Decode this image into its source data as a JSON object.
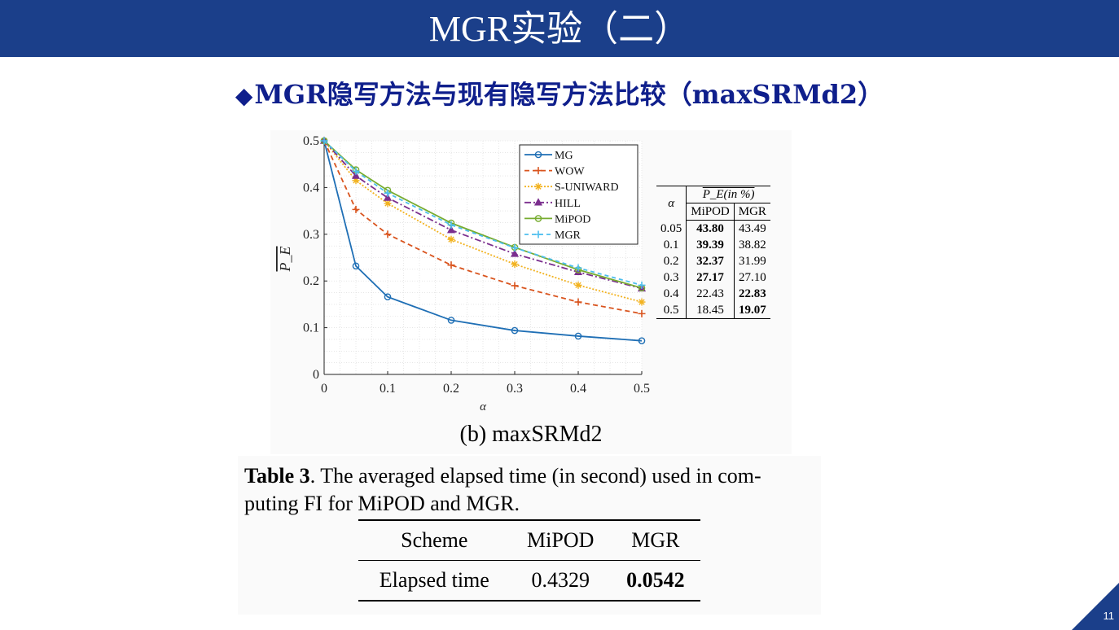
{
  "header": {
    "title": "MGR实验（二）"
  },
  "subtitle": {
    "diamond": "◆",
    "text": "MGR隐写方法与现有隐写方法比较（maxSRMd2）"
  },
  "chart_data": {
    "type": "line",
    "x": [
      0,
      0.05,
      0.1,
      0.2,
      0.3,
      0.4,
      0.5
    ],
    "xlabel": "α",
    "ylabel": "P_E",
    "xlim": [
      0,
      0.5
    ],
    "ylim": [
      0,
      0.5
    ],
    "xticks": [
      "0",
      "0.1",
      "0.2",
      "0.3",
      "0.4",
      "0.5"
    ],
    "yticks": [
      "0",
      "0.1",
      "0.2",
      "0.3",
      "0.4",
      "0.5"
    ],
    "grid": true,
    "legend": "top-right",
    "caption": "(b) maxSRMd2",
    "series": [
      {
        "name": "MG",
        "color": "#1f6fb5",
        "dash": "",
        "marker": "circle",
        "values": [
          0.5,
          0.232,
          0.166,
          0.116,
          0.094,
          0.082,
          0.072
        ]
      },
      {
        "name": "WOW",
        "color": "#d9541e",
        "dash": "6,4",
        "marker": "plus",
        "values": [
          0.5,
          0.353,
          0.3,
          0.234,
          0.19,
          0.155,
          0.13
        ]
      },
      {
        "name": "S-UNIWARD",
        "color": "#f2b21f",
        "dash": "2,2",
        "marker": "star",
        "values": [
          0.5,
          0.415,
          0.366,
          0.289,
          0.236,
          0.191,
          0.155
        ]
      },
      {
        "name": "HILL",
        "color": "#7b2f8e",
        "dash": "8,3,2,3",
        "marker": "triangle",
        "values": [
          0.5,
          0.425,
          0.378,
          0.309,
          0.258,
          0.219,
          0.184
        ]
      },
      {
        "name": "MiPOD",
        "color": "#77ac30",
        "dash": "",
        "marker": "circle",
        "values": [
          0.5,
          0.438,
          0.394,
          0.324,
          0.272,
          0.224,
          0.185
        ]
      },
      {
        "name": "MGR",
        "color": "#4dbeee",
        "dash": "5,4",
        "marker": "plus",
        "values": [
          0.5,
          0.435,
          0.388,
          0.32,
          0.271,
          0.228,
          0.191
        ]
      }
    ]
  },
  "pe_table": {
    "col_alpha": "α",
    "col_pe": "P_E(in %)",
    "sub_headers": [
      "MiPOD",
      "MGR"
    ],
    "rows": [
      {
        "alpha": "0.05",
        "mipod": "43.80",
        "mgr": "43.49",
        "bold": "mipod"
      },
      {
        "alpha": "0.1",
        "mipod": "39.39",
        "mgr": "38.82",
        "bold": "mipod"
      },
      {
        "alpha": "0.2",
        "mipod": "32.37",
        "mgr": "31.99",
        "bold": "mipod"
      },
      {
        "alpha": "0.3",
        "mipod": "27.17",
        "mgr": "27.10",
        "bold": "mipod"
      },
      {
        "alpha": "0.4",
        "mipod": "22.43",
        "mgr": "22.83",
        "bold": "mgr"
      },
      {
        "alpha": "0.5",
        "mipod": "18.45",
        "mgr": "19.07",
        "bold": "mgr"
      }
    ]
  },
  "table3": {
    "label": "Table 3",
    "caption_line1": ". The averaged elapsed time (in second) used in com-",
    "caption_line2": "puting FI for MiPOD and MGR.",
    "headers": [
      "Scheme",
      "MiPOD",
      "MGR"
    ],
    "row": [
      "Elapsed time",
      "0.4329",
      "0.0542"
    ]
  },
  "page_number": "11"
}
